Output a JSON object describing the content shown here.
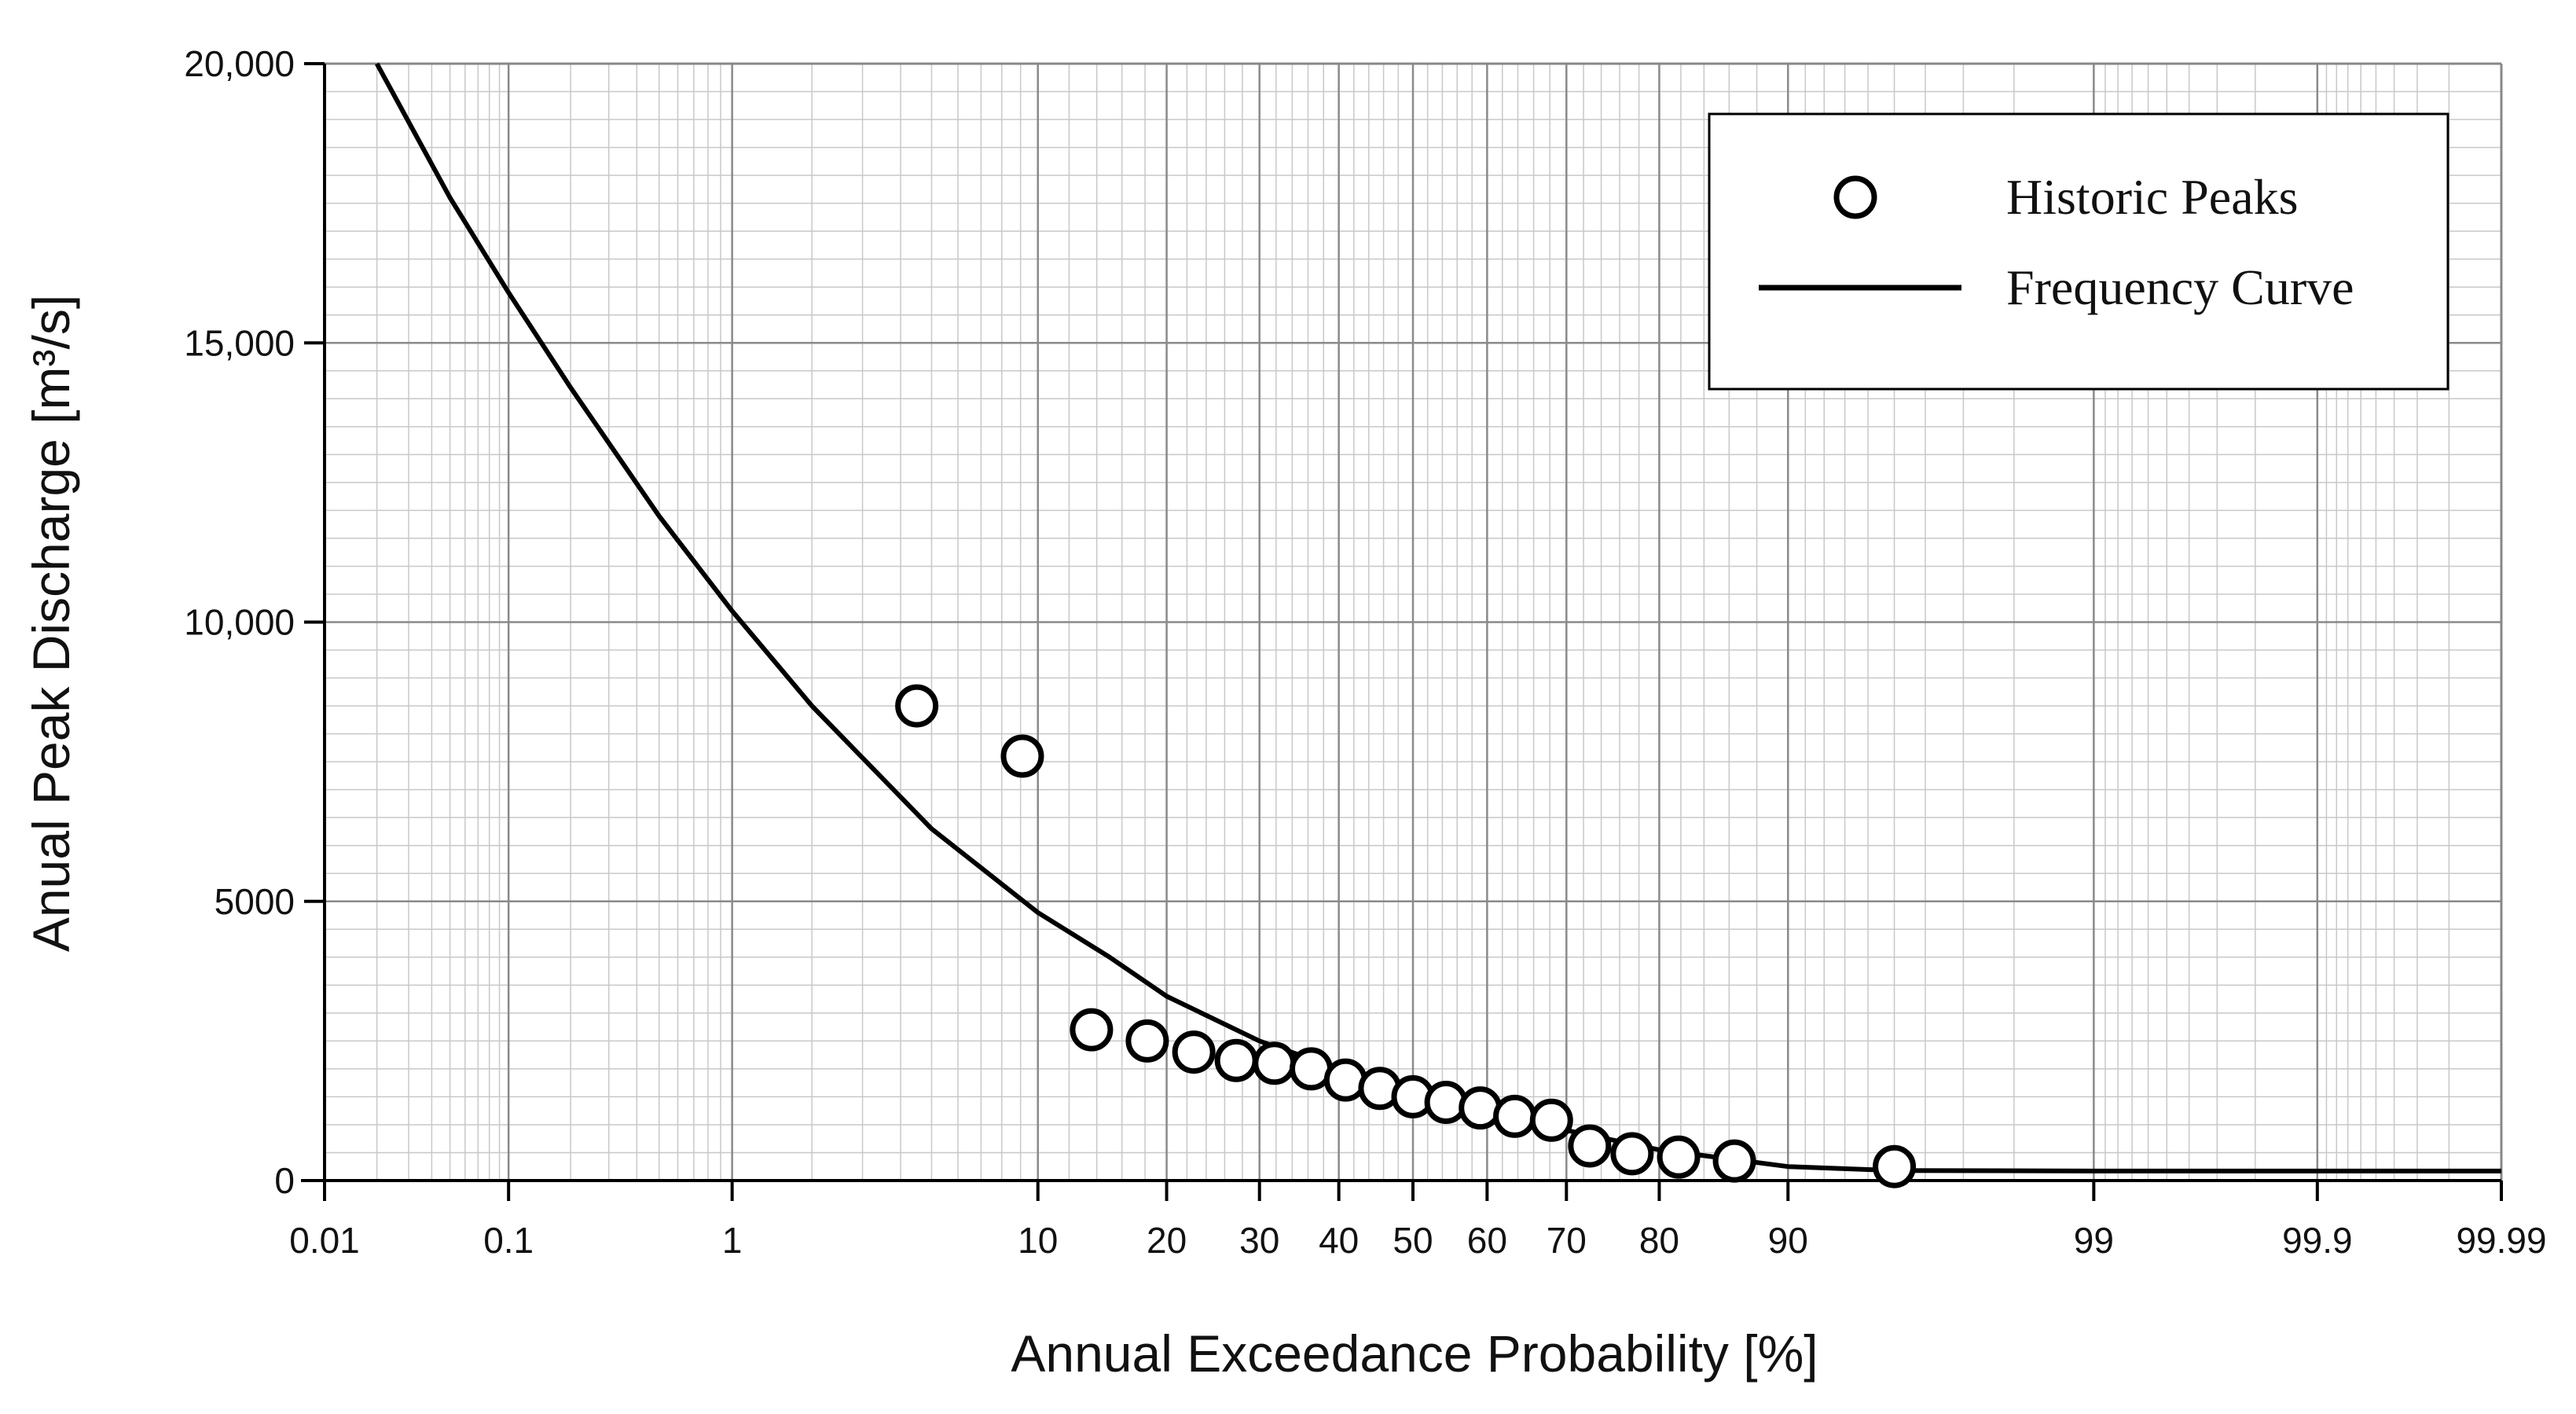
{
  "chart_data": {
    "type": "scatter",
    "title": "",
    "xlabel": "Annual Exceedance Probability [%]",
    "ylabel": "Anual Peak Discharge [m³/s]",
    "xscale": "probability (normal)",
    "ylim": [
      0,
      20000
    ],
    "x_ticks": [
      "0.01",
      "0.1",
      "1",
      "10",
      "20",
      "30",
      "40",
      "50",
      "60",
      "70",
      "80",
      "90",
      "99",
      "99.9",
      "99.99"
    ],
    "y_ticks": [
      "0",
      "5000",
      "10,000",
      "15,000",
      "20,000"
    ],
    "legend": {
      "position": "top-right",
      "entries": [
        "Historic Peaks",
        "Frequency Curve"
      ]
    },
    "series": [
      {
        "name": "Historic Peaks",
        "type": "scatter",
        "points": [
          {
            "x": 4.5,
            "y": 8500
          },
          {
            "x": 9.1,
            "y": 7600
          },
          {
            "x": 13.6,
            "y": 2700
          },
          {
            "x": 18.2,
            "y": 2500
          },
          {
            "x": 22.7,
            "y": 2300
          },
          {
            "x": 27.3,
            "y": 2150
          },
          {
            "x": 31.8,
            "y": 2100
          },
          {
            "x": 36.4,
            "y": 2000
          },
          {
            "x": 40.9,
            "y": 1800
          },
          {
            "x": 45.5,
            "y": 1650
          },
          {
            "x": 50.0,
            "y": 1500
          },
          {
            "x": 54.5,
            "y": 1400
          },
          {
            "x": 59.1,
            "y": 1300
          },
          {
            "x": 63.6,
            "y": 1150
          },
          {
            "x": 68.2,
            "y": 1080
          },
          {
            "x": 72.7,
            "y": 620
          },
          {
            "x": 77.3,
            "y": 480
          },
          {
            "x": 81.8,
            "y": 420
          },
          {
            "x": 86.4,
            "y": 350
          },
          {
            "x": 95.0,
            "y": 250
          }
        ]
      },
      {
        "name": "Frequency Curve",
        "type": "line",
        "points": [
          {
            "x": 0.02,
            "y": 20000
          },
          {
            "x": 0.05,
            "y": 17600
          },
          {
            "x": 0.1,
            "y": 15900
          },
          {
            "x": 0.2,
            "y": 14200
          },
          {
            "x": 0.5,
            "y": 11900
          },
          {
            "x": 1,
            "y": 10200
          },
          {
            "x": 2,
            "y": 8500
          },
          {
            "x": 5,
            "y": 6300
          },
          {
            "x": 10,
            "y": 4800
          },
          {
            "x": 15,
            "y": 4000
          },
          {
            "x": 20,
            "y": 3300
          },
          {
            "x": 30,
            "y": 2500
          },
          {
            "x": 40,
            "y": 2000
          },
          {
            "x": 50,
            "y": 1600
          },
          {
            "x": 60,
            "y": 1250
          },
          {
            "x": 70,
            "y": 900
          },
          {
            "x": 80,
            "y": 550
          },
          {
            "x": 90,
            "y": 250
          },
          {
            "x": 95,
            "y": 180
          },
          {
            "x": 99,
            "y": 170
          },
          {
            "x": 99.9,
            "y": 170
          },
          {
            "x": 99.99,
            "y": 170
          }
        ]
      }
    ]
  }
}
